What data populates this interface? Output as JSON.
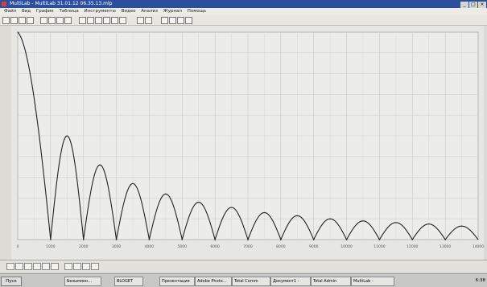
{
  "window": {
    "title": "MultiLab - MultiLab 31.01.12 06.35.13.mlp",
    "controls": [
      "_",
      "□",
      "×"
    ]
  },
  "menu": [
    "Файл",
    "Вид",
    "График",
    "Таблица",
    "Инструменты",
    "Видео",
    "Анализ",
    "Журнал",
    "Помощь"
  ],
  "chart_data": {
    "type": "line",
    "xlabel": "",
    "ylabel": "",
    "xlim": [
      0,
      14000
    ],
    "x_ticks": [
      "0",
      "1000",
      "2000",
      "3000",
      "4000",
      "5000",
      "6000",
      "7000",
      "8000",
      "9000",
      "10000",
      "11000",
      "12000",
      "13000",
      "14000"
    ],
    "grid": true,
    "series": [
      {
        "color": "#222222",
        "description_of_shape": "rectified sinc: main lobe decreasing from 1 at x=0, zeros every 1000 units, side lobes decaying",
        "zeros": [
          1000,
          2000,
          3000,
          4000,
          5000,
          6000,
          7000,
          8000,
          9000,
          10000,
          11000,
          12000,
          13000
        ],
        "lobe_peaks": [
          {
            "x": 0,
            "y": 1.0
          },
          {
            "x": 1500,
            "y": 0.5
          },
          {
            "x": 2500,
            "y": 0.36
          },
          {
            "x": 3500,
            "y": 0.27
          },
          {
            "x": 4500,
            "y": 0.22
          },
          {
            "x": 5500,
            "y": 0.18
          },
          {
            "x": 6500,
            "y": 0.155
          },
          {
            "x": 7500,
            "y": 0.13
          },
          {
            "x": 8500,
            "y": 0.115
          },
          {
            "x": 9500,
            "y": 0.1
          },
          {
            "x": 10500,
            "y": 0.09
          },
          {
            "x": 11500,
            "y": 0.082
          },
          {
            "x": 12500,
            "y": 0.075
          },
          {
            "x": 13500,
            "y": 0.065
          }
        ]
      }
    ]
  },
  "taskbar": {
    "start_label": "Пуск",
    "tasks": [
      "Безымянн...",
      "BLOGET",
      "Презентация",
      "Adobe Photo...",
      "Total Comm",
      "Документ1 -",
      "Total Admin",
      "MultiLab -"
    ],
    "clock": "6:38"
  }
}
